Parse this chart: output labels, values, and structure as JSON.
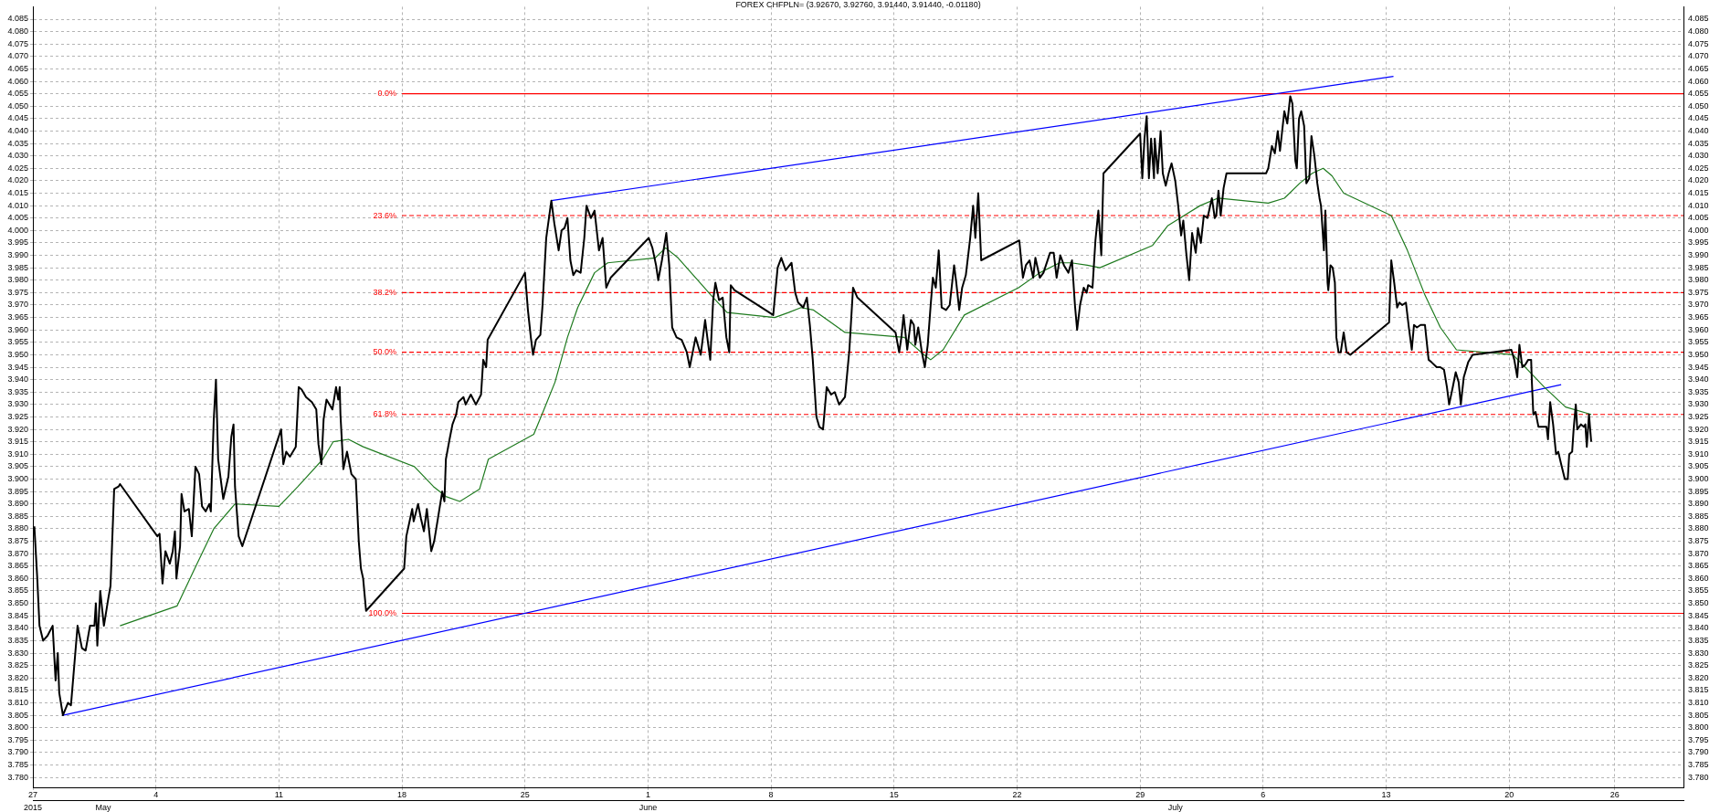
{
  "chart_data": {
    "type": "line",
    "title": "FOREX CHFPLN= (3.92670, 3.92760, 3.91440, 3.91440, -0.01180)",
    "xlim": [
      "2015-04-27",
      "2015-07-29T22:00"
    ],
    "xticks": [
      {
        "value": "2015-04-27",
        "label": "27"
      },
      {
        "value": "2015-05-04",
        "label": "4"
      },
      {
        "value": "2015-05-11",
        "label": "11"
      },
      {
        "value": "2015-05-18",
        "label": "18"
      },
      {
        "value": "2015-05-25",
        "label": "25"
      },
      {
        "value": "2015-06-01",
        "label": "1"
      },
      {
        "value": "2015-06-08",
        "label": "8"
      },
      {
        "value": "2015-06-15",
        "label": "15"
      },
      {
        "value": "2015-06-22",
        "label": "22"
      },
      {
        "value": "2015-06-29",
        "label": "29"
      },
      {
        "value": "2015-07-06",
        "label": "6"
      },
      {
        "value": "2015-07-13",
        "label": "13"
      },
      {
        "value": "2015-07-20",
        "label": "20"
      },
      {
        "value": "2015-07-26",
        "label": "26"
      }
    ],
    "x2lim": [
      "2015-04-27",
      "2015-07-29T22:00"
    ],
    "x2ticks": [
      {
        "value": "2015-04-27",
        "label": "2015"
      },
      {
        "value": "2015-05-01",
        "label": "May"
      },
      {
        "value": "2015-06-01",
        "label": "June"
      },
      {
        "value": "2015-07-01",
        "label": "July"
      }
    ],
    "ylim": [
      3.776,
      4.09
    ],
    "yticks": [
      {
        "value": 3.78,
        "label": "3.780"
      },
      3.785,
      {
        "value": 3.79,
        "label": "3.790"
      },
      3.795,
      {
        "value": 3.8,
        "label": "3.800"
      },
      3.805,
      {
        "value": 3.81,
        "label": "3.810"
      },
      3.815,
      {
        "value": 3.82,
        "label": "3.820"
      },
      3.825,
      {
        "value": 3.83,
        "label": "3.830"
      },
      3.835,
      {
        "value": 3.84,
        "label": "3.840"
      },
      3.845,
      {
        "value": 3.85,
        "label": "3.850"
      },
      3.855,
      {
        "value": 3.86,
        "label": "3.860"
      },
      3.865,
      {
        "value": 3.87,
        "label": "3.870"
      },
      3.875,
      {
        "value": 3.88,
        "label": "3.880"
      },
      3.885,
      {
        "value": 3.89,
        "label": "3.890"
      },
      3.895,
      {
        "value": 3.9,
        "label": "3.900"
      },
      3.905,
      {
        "value": 3.91,
        "label": "3.910"
      },
      3.915,
      {
        "value": 3.92,
        "label": "3.920"
      },
      3.925,
      {
        "value": 3.93,
        "label": "3.930"
      },
      3.935,
      {
        "value": 3.94,
        "label": "3.940"
      },
      3.945,
      {
        "value": 3.95,
        "label": "3.950"
      },
      3.955,
      {
        "value": 3.96,
        "label": "3.960"
      },
      3.965,
      {
        "value": 3.97,
        "label": "3.970"
      },
      3.975,
      {
        "value": 3.98,
        "label": "3.980"
      },
      3.985,
      {
        "value": 3.99,
        "label": "3.990"
      },
      3.995,
      {
        "value": 4,
        "label": "4.000"
      },
      4.005,
      {
        "value": 4.01,
        "label": "4.010"
      },
      4.015,
      {
        "value": 4.02,
        "label": "4.020"
      },
      4.025,
      {
        "value": 4.03,
        "label": "4.030"
      },
      4.035,
      {
        "value": 4.04,
        "label": "4.040"
      },
      4.045,
      {
        "value": 4.05,
        "label": "4.050"
      },
      4.055,
      {
        "value": 4.06,
        "label": "4.060"
      },
      4.065,
      {
        "value": 4.07,
        "label": "4.070"
      },
      4.075,
      {
        "value": 4.08,
        "label": "4.080"
      },
      4.085
    ],
    "y2lim": [
      3.776,
      4.09
    ],
    "y2ticks": [
      {
        "value": 3.78,
        "label": "3.780"
      },
      3.785,
      {
        "value": 3.79,
        "label": "3.790"
      },
      3.795,
      {
        "value": 3.8,
        "label": "3.800"
      },
      3.805,
      {
        "value": 3.81,
        "label": "3.810"
      },
      3.815,
      {
        "value": 3.82,
        "label": "3.820"
      },
      3.825,
      {
        "value": 3.83,
        "label": "3.830"
      },
      3.835,
      {
        "value": 3.84,
        "label": "3.840"
      },
      3.845,
      {
        "value": 3.85,
        "label": "3.850"
      },
      3.855,
      {
        "value": 3.86,
        "label": "3.860"
      },
      3.865,
      {
        "value": 3.87,
        "label": "3.870"
      },
      3.875,
      {
        "value": 3.88,
        "label": "3.880"
      },
      3.885,
      {
        "value": 3.89,
        "label": "3.890"
      },
      3.895,
      {
        "value": 3.9,
        "label": "3.900"
      },
      3.905,
      {
        "value": 3.91,
        "label": "3.910"
      },
      3.915,
      {
        "value": 3.92,
        "label": "3.920"
      },
      3.925,
      {
        "value": 3.93,
        "label": "3.930"
      },
      3.935,
      {
        "value": 3.94,
        "label": "3.940"
      },
      3.945,
      {
        "value": 3.95,
        "label": "3.950"
      },
      3.955,
      {
        "value": 3.96,
        "label": "3.960"
      },
      3.965,
      {
        "value": 3.97,
        "label": "3.970"
      },
      3.975,
      {
        "value": 3.98,
        "label": "3.980"
      },
      3.985,
      {
        "value": 3.99,
        "label": "3.990"
      },
      3.995,
      {
        "value": 4,
        "label": "4.000"
      },
      4.005,
      {
        "value": 4.01,
        "label": "4.010"
      },
      4.015,
      {
        "value": 4.02,
        "label": "4.020"
      },
      4.025,
      {
        "value": 4.03,
        "label": "4.030"
      },
      4.035,
      {
        "value": 4.04,
        "label": "4.040"
      },
      4.045,
      {
        "value": 4.05,
        "label": "4.050"
      },
      4.055,
      {
        "value": 4.06,
        "label": "4.060"
      },
      4.065,
      {
        "value": 4.07,
        "label": "4.070"
      },
      4.075,
      {
        "value": 4.08,
        "label": "4.080"
      },
      4.085
    ],
    "grid": true,
    "series": [
      {
        "color": "#000000",
        "x": [
          "2015-04-27T02:00",
          "2015-04-27T06:00",
          "2015-04-27T09:00",
          "2015-04-27T14:00",
          "2015-04-27T20:00",
          "2015-04-28T03:00",
          "2015-04-28T07:00",
          "2015-04-28T10:00",
          "2015-04-28T12:00",
          "2015-04-28T17:00",
          "2015-04-29T00:00",
          "2015-04-29T04:00",
          "2015-04-29T13:00",
          "2015-04-29T19:00",
          "2015-04-30T00:00",
          "2015-04-30T06:00",
          "2015-04-30T12:00",
          "2015-04-30T14:00",
          "2015-04-30T16:00",
          "2015-04-30T20:00",
          "2015-05-01T01:00",
          "2015-05-01T07:00",
          "2015-05-01T10:00",
          "2015-05-01T15:00",
          "2015-05-01T21:00",
          "2015-05-01T23:00",
          "2015-05-04T02:00",
          "2015-05-04T05:00",
          "2015-05-04T09:00",
          "2015-05-04T13:00",
          "2015-05-04T19:00",
          "2015-05-04T23:00",
          "2015-05-05T02:00",
          "2015-05-05T04:00",
          "2015-05-05T09:00",
          "2015-05-05T11:00",
          "2015-05-05T15:00",
          "2015-05-05T21:00",
          "2015-05-06T01:00",
          "2015-05-06T06:00",
          "2015-05-06T11:00",
          "2015-05-06T15:00",
          "2015-05-06T20:00",
          "2015-05-07T01:00",
          "2015-05-07T03:00",
          "2015-05-07T07:00",
          "2015-05-07T10:00",
          "2015-05-07T13:00",
          "2015-05-07T20:00",
          "2015-05-08T03:00",
          "2015-05-08T07:00",
          "2015-05-08T10:00",
          "2015-05-08T12:00",
          "2015-05-08T17:00",
          "2015-05-08T22:00",
          "2015-05-11T03:00",
          "2015-05-11T06:00",
          "2015-05-11T10:00",
          "2015-05-11T15:00",
          "2015-05-11T23:00",
          "2015-05-12T03:00",
          "2015-05-12T07:00",
          "2015-05-12T13:00",
          "2015-05-12T21:00",
          "2015-05-13T03:00",
          "2015-05-13T06:00",
          "2015-05-13T10:00",
          "2015-05-13T13:00",
          "2015-05-13T17:00",
          "2015-05-14T01:00",
          "2015-05-14T06:00",
          "2015-05-14T09:00",
          "2015-05-14T11:00",
          "2015-05-14T12:00",
          "2015-05-14T16:00",
          "2015-05-14T21:00",
          "2015-05-15T03:00",
          "2015-05-15T09:00",
          "2015-05-15T13:00",
          "2015-05-15T16:00",
          "2015-05-15T19:00",
          "2015-05-15T23:00",
          "2015-05-18T03:00",
          "2015-05-18T06:00",
          "2015-05-18T14:00",
          "2015-05-18T16:00",
          "2015-05-18T22:00",
          "2015-05-19T02:00",
          "2015-05-19T06:00",
          "2015-05-19T10:00",
          "2015-05-19T16:00",
          "2015-05-19T20:00",
          "2015-05-20T01:00",
          "2015-05-20T07:00",
          "2015-05-20T10:00",
          "2015-05-20T12:00",
          "2015-05-20T17:00",
          "2015-05-20T21:00",
          "2015-05-21T02:00",
          "2015-05-21T05:00",
          "2015-05-21T12:00",
          "2015-05-21T15:00",
          "2015-05-21T22:00",
          "2015-05-22T05:00",
          "2015-05-22T12:00",
          "2015-05-22T15:00",
          "2015-05-22T19:00",
          "2015-05-22T21:00",
          "2015-05-25T00:00",
          "2015-05-25T04:00",
          "2015-05-25T08:00",
          "2015-05-25T11:00",
          "2015-05-25T15:00",
          "2015-05-25T21:00",
          "2015-05-26T00:00",
          "2015-05-26T05:00",
          "2015-05-26T12:00",
          "2015-05-26T16:00",
          "2015-05-26T22:00",
          "2015-05-27T02:00",
          "2015-05-27T06:00",
          "2015-05-27T10:00",
          "2015-05-27T14:00",
          "2015-05-27T18:00",
          "2015-05-27T22:00",
          "2015-05-28T04:00",
          "2015-05-28T09:00",
          "2015-05-28T12:00",
          "2015-05-28T18:00",
          "2015-05-28T23:00",
          "2015-05-29T05:00",
          "2015-05-29T10:00",
          "2015-05-29T15:00",
          "2015-05-29T21:00",
          "2015-06-01T01:00",
          "2015-06-01T06:00",
          "2015-06-01T11:00",
          "2015-06-01T14:00",
          "2015-06-01T19:00",
          "2015-06-02T01:00",
          "2015-06-02T05:00",
          "2015-06-02T09:00",
          "2015-06-02T15:00",
          "2015-06-02T22:00",
          "2015-06-03T05:00",
          "2015-06-03T09:00",
          "2015-06-03T17:00",
          "2015-06-04T00:00",
          "2015-06-04T06:00",
          "2015-06-04T09:00",
          "2015-06-04T13:00",
          "2015-06-04T17:00",
          "2015-06-04T20:00",
          "2015-06-05T01:00",
          "2015-06-05T06:00",
          "2015-06-05T11:00",
          "2015-06-05T15:00",
          "2015-06-05T17:00",
          "2015-06-05T22:00",
          "2015-06-08T03:00",
          "2015-06-08T09:00",
          "2015-06-08T14:00",
          "2015-06-08T20:00",
          "2015-06-09T04:00",
          "2015-06-09T09:00",
          "2015-06-09T13:00",
          "2015-06-09T20:00",
          "2015-06-10T01:00",
          "2015-06-10T05:00",
          "2015-06-10T09:00",
          "2015-06-10T14:00",
          "2015-06-10T18:00",
          "2015-06-10T23:00",
          "2015-06-11T04:00",
          "2015-06-11T10:00",
          "2015-06-11T15:00",
          "2015-06-11T21:00",
          "2015-06-12T05:00",
          "2015-06-12T11:00",
          "2015-06-12T16:00",
          "2015-06-12T22:00",
          "2015-06-15T02:00",
          "2015-06-15T07:00",
          "2015-06-15T10:00",
          "2015-06-15T13:00",
          "2015-06-15T18:00",
          "2015-06-15T23:00",
          "2015-06-16T03:00",
          "2015-06-16T05:00",
          "2015-06-16T09:00",
          "2015-06-16T14:00",
          "2015-06-16T18:00",
          "2015-06-16T22:00",
          "2015-06-17T02:00",
          "2015-06-17T05:00",
          "2015-06-17T09:00",
          "2015-06-17T13:00",
          "2015-06-17T17:00",
          "2015-06-17T23:00",
          "2015-06-18T04:00",
          "2015-06-18T10:00",
          "2015-06-18T13:00",
          "2015-06-18T17:00",
          "2015-06-18T21:00",
          "2015-06-19T02:00",
          "2015-06-19T08:00",
          "2015-06-19T12:00",
          "2015-06-19T15:00",
          "2015-06-19T19:00",
          "2015-06-19T23:00",
          "2015-06-22T03:00",
          "2015-06-22T08:00",
          "2015-06-22T12:00",
          "2015-06-22T17:00",
          "2015-06-22T22:00",
          "2015-06-23T01:00",
          "2015-06-23T07:00",
          "2015-06-23T12:00",
          "2015-06-23T21:00",
          "2015-06-24T02:00",
          "2015-06-24T06:00",
          "2015-06-24T11:00",
          "2015-06-24T16:00",
          "2015-06-24T22:00",
          "2015-06-25T03:00",
          "2015-06-25T07:00",
          "2015-06-25T10:00",
          "2015-06-25T14:00",
          "2015-06-25T19:00",
          "2015-06-25T23:00",
          "2015-06-26T01:00",
          "2015-06-26T07:00",
          "2015-06-26T11:00",
          "2015-06-26T15:00",
          "2015-06-26T19:00",
          "2015-06-26T22:00",
          "2015-06-29T00:00",
          "2015-06-29T03:00",
          "2015-06-29T06:00",
          "2015-06-29T09:00",
          "2015-06-29T12:00",
          "2015-06-29T15:00",
          "2015-06-29T19:00",
          "2015-06-29T20:00",
          "2015-06-30T00:00",
          "2015-06-30T04:00",
          "2015-06-30T07:00",
          "2015-06-30T11:00",
          "2015-06-30T15:00",
          "2015-06-30T19:00",
          "2015-07-01T00:00",
          "2015-07-01T04:00",
          "2015-07-01T08:00",
          "2015-07-01T11:00",
          "2015-07-01T15:00",
          "2015-07-01T19:00",
          "2015-07-01T23:00",
          "2015-07-02T04:00",
          "2015-07-02T07:00",
          "2015-07-02T11:00",
          "2015-07-02T15:00",
          "2015-07-02T20:00",
          "2015-07-03T02:00",
          "2015-07-03T06:00",
          "2015-07-03T08:00",
          "2015-07-03T11:00",
          "2015-07-03T14:00",
          "2015-07-03T18:00",
          "2015-07-03T22:00",
          "2015-07-06T04:00",
          "2015-07-06T07:00",
          "2015-07-06T12:00",
          "2015-07-06T16:00",
          "2015-07-06T20:00",
          "2015-07-06T23:00",
          "2015-07-07T05:00",
          "2015-07-07T09:00",
          "2015-07-07T13:00",
          "2015-07-07T16:00",
          "2015-07-07T20:00",
          "2015-07-07T22:00",
          "2015-07-08T01:00",
          "2015-07-08T04:00",
          "2015-07-08T08:00",
          "2015-07-08T11:00",
          "2015-07-08T15:00",
          "2015-07-08T18:00",
          "2015-07-08T22:00",
          "2015-07-09T02:00",
          "2015-07-09T05:00",
          "2015-07-09T07:00",
          "2015-07-09T11:00",
          "2015-07-09T13:00",
          "2015-07-09T16:00",
          "2015-07-09T17:00",
          "2015-07-09T20:00",
          "2015-07-09T23:00",
          "2015-07-10T02:00",
          "2015-07-10T04:00",
          "2015-07-10T07:00",
          "2015-07-10T10:00",
          "2015-07-10T14:00",
          "2015-07-10T18:00",
          "2015-07-10T23:00",
          "2015-07-13T04:00",
          "2015-07-13T07:00",
          "2015-07-13T11:00",
          "2015-07-13T15:00",
          "2015-07-13T18:00",
          "2015-07-13T22:00",
          "2015-07-14T03:00",
          "2015-07-14T07:00",
          "2015-07-14T11:00",
          "2015-07-14T14:00",
          "2015-07-14T18:00",
          "2015-07-14T23:00",
          "2015-07-15T05:00",
          "2015-07-15T10:00",
          "2015-07-15T14:00",
          "2015-07-15T21:00",
          "2015-07-16T02:00",
          "2015-07-16T07:00",
          "2015-07-16T11:00",
          "2015-07-16T14:00",
          "2015-07-16T19:00",
          "2015-07-16T23:00",
          "2015-07-17T03:00",
          "2015-07-17T06:00",
          "2015-07-17T10:00",
          "2015-07-17T16:00",
          "2015-07-17T22:00",
          "2015-07-20T03:00",
          "2015-07-20T07:00",
          "2015-07-20T11:00",
          "2015-07-20T14:00",
          "2015-07-20T18:00",
          "2015-07-20T22:00",
          "2015-07-21T02:00",
          "2015-07-21T06:00",
          "2015-07-21T07:00",
          "2015-07-21T09:00",
          "2015-07-21T12:00",
          "2015-07-21T16:00",
          "2015-07-21T21:00",
          "2015-07-22T03:00",
          "2015-07-22T05:00",
          "2015-07-22T08:00",
          "2015-07-22T12:00",
          "2015-07-22T16:00",
          "2015-07-22T19:00",
          "2015-07-22T23:00",
          "2015-07-23T04:00",
          "2015-07-23T08:00",
          "2015-07-23T10:00",
          "2015-07-23T14:00",
          "2015-07-23T16:00",
          "2015-07-23T19:00",
          "2015-07-23T21:00",
          "2015-07-24T02:00",
          "2015-07-24T06:00",
          "2015-07-24T08:00",
          "2015-07-24T10:00",
          "2015-07-24T13:00",
          "2015-07-24T16:00"
        ],
        "values": [
          3.881,
          3.86,
          3.841,
          3.835,
          3.837,
          3.841,
          3.819,
          3.83,
          3.814,
          3.805,
          3.81,
          3.809,
          3.841,
          3.832,
          3.831,
          3.841,
          3.841,
          3.85,
          3.833,
          3.855,
          3.841,
          3.852,
          3.857,
          3.896,
          3.897,
          3.898,
          3.877,
          3.878,
          3.858,
          3.871,
          3.866,
          3.871,
          3.879,
          3.86,
          3.873,
          3.894,
          3.887,
          3.888,
          3.877,
          3.905,
          3.902,
          3.889,
          3.887,
          3.89,
          3.887,
          3.924,
          3.94,
          3.908,
          3.892,
          3.901,
          3.917,
          3.922,
          3.897,
          3.877,
          3.873,
          3.92,
          3.906,
          3.911,
          3.909,
          3.913,
          3.937,
          3.936,
          3.933,
          3.931,
          3.928,
          3.914,
          3.906,
          3.924,
          3.932,
          3.928,
          3.937,
          3.932,
          3.937,
          3.926,
          3.904,
          3.911,
          3.902,
          3.9,
          3.875,
          3.864,
          3.86,
          3.847,
          3.864,
          3.877,
          3.888,
          3.883,
          3.89,
          3.884,
          3.879,
          3.888,
          3.871,
          3.875,
          3.884,
          3.895,
          3.891,
          3.908,
          3.916,
          3.922,
          3.926,
          3.931,
          3.933,
          3.93,
          3.934,
          3.93,
          3.934,
          3.948,
          3.945,
          3.956,
          3.983,
          3.968,
          3.957,
          3.95,
          3.956,
          3.958,
          3.97,
          3.997,
          4.012,
          4.003,
          3.992,
          4,
          4.001,
          4.005,
          3.988,
          3.982,
          3.984,
          3.983,
          3.997,
          4.01,
          4.005,
          4.008,
          3.992,
          3.997,
          3.977,
          3.981,
          3.997,
          3.993,
          3.986,
          3.98,
          3.988,
          3.999,
          3.986,
          3.961,
          3.957,
          3.956,
          3.951,
          3.945,
          3.957,
          3.95,
          3.964,
          3.957,
          3.948,
          3.972,
          3.979,
          3.972,
          3.973,
          3.957,
          3.951,
          3.978,
          3.976,
          3.966,
          3.985,
          3.989,
          3.984,
          3.987,
          3.975,
          3.971,
          3.969,
          3.973,
          3.962,
          3.948,
          3.925,
          3.921,
          3.92,
          3.937,
          3.934,
          3.935,
          3.93,
          3.933,
          3.952,
          3.977,
          3.973,
          3.959,
          3.951,
          3.957,
          3.966,
          3.952,
          3.964,
          3.962,
          3.954,
          3.961,
          3.951,
          3.945,
          3.954,
          3.97,
          3.981,
          3.977,
          3.992,
          3.969,
          3.968,
          3.97,
          3.986,
          3.979,
          3.968,
          3.977,
          3.982,
          3.997,
          4.01,
          3.997,
          4.015,
          3.988,
          3.996,
          3.981,
          3.986,
          3.988,
          3.981,
          3.989,
          3.981,
          3.983,
          3.991,
          3.991,
          3.981,
          3.99,
          3.986,
          3.983,
          3.988,
          3.97,
          3.96,
          3.97,
          3.977,
          3.975,
          3.978,
          3.977,
          3.996,
          4.008,
          3.99,
          4.023,
          4.039,
          4.021,
          4.037,
          4.046,
          4.021,
          4.037,
          4.021,
          4.037,
          4.023,
          4.04,
          4.023,
          4.018,
          4.023,
          4.027,
          4.02,
          4.01,
          3.998,
          4.004,
          3.991,
          3.98,
          3.999,
          3.991,
          4.001,
          3.995,
          4.006,
          4.005,
          4.013,
          4.005,
          4.006,
          4.016,
          4.006,
          4.017,
          4.023,
          4.023,
          4.025,
          4.034,
          4.031,
          4.04,
          4.032,
          4.048,
          4.043,
          4.054,
          4.051,
          4.028,
          4.025,
          4.045,
          4.048,
          4.042,
          4.019,
          4.021,
          4.038,
          4.03,
          4.019,
          4.013,
          4.01,
          3.992,
          4.008,
          3.979,
          3.976,
          3.986,
          3.985,
          3.979,
          3.957,
          3.951,
          3.951,
          3.959,
          3.951,
          3.95,
          3.963,
          3.988,
          3.979,
          3.969,
          3.971,
          3.97,
          3.971,
          3.961,
          3.952,
          3.962,
          3.961,
          3.962,
          3.962,
          3.948,
          3.947,
          3.945,
          3.945,
          3.944,
          3.937,
          3.93,
          3.937,
          3.943,
          3.939,
          3.93,
          3.941,
          3.947,
          3.95,
          3.952,
          3.948,
          3.941,
          3.954,
          3.945,
          3.946,
          3.948,
          3.948,
          3.939,
          3.926,
          3.927,
          3.921,
          3.921,
          3.921,
          3.916,
          3.931,
          3.922,
          3.91,
          3.911,
          3.906,
          3.9,
          3.9,
          3.91,
          3.911,
          3.92,
          3.93,
          3.92,
          3.922,
          3.921,
          3.922,
          3.913,
          3.926,
          3.915
        ]
      },
      {
        "color": "#1e7a1e",
        "x": [
          "2015-05-01T23:00",
          "2015-05-05T05:00",
          "2015-05-06T05:00",
          "2015-05-07T07:00",
          "2015-05-08T12:00",
          "2015-05-11T00:00",
          "2015-05-12T02:00",
          "2015-05-13T12:00",
          "2015-05-14T02:00",
          "2015-05-14T23:00",
          "2015-05-15T19:00",
          "2015-05-18T17:00",
          "2015-05-19T19:00",
          "2015-05-20T12:00",
          "2015-05-21T07:00",
          "2015-05-22T10:00",
          "2015-05-22T22:00",
          "2015-05-25T12:00",
          "2015-05-26T02:00",
          "2015-05-26T17:00",
          "2015-05-27T10:00",
          "2015-05-28T00:00",
          "2015-05-28T23:00",
          "2015-05-29T17:00",
          "2015-06-01T10:00",
          "2015-06-02T00:00",
          "2015-06-02T17:00",
          "2015-06-03T17:00",
          "2015-06-04T14:00",
          "2015-06-05T12:00",
          "2015-06-08T05:00",
          "2015-06-09T00:00",
          "2015-06-09T17:00",
          "2015-06-10T10:00",
          "2015-06-11T05:00",
          "2015-06-12T05:00",
          "2015-06-15T14:00",
          "2015-06-16T17:00",
          "2015-06-17T02:00",
          "2015-06-17T19:00",
          "2015-06-19T00:00",
          "2015-06-22T02:00",
          "2015-06-23T07:00",
          "2015-06-24T10:00",
          "2015-06-25T02:00",
          "2015-06-26T00:00",
          "2015-06-26T17:00",
          "2015-06-29T17:00",
          "2015-06-30T14:00",
          "2015-07-01T12:00",
          "2015-07-02T10:00",
          "2015-07-03T10:00",
          "2015-07-06T07:00",
          "2015-07-07T05:00",
          "2015-07-08T02:00",
          "2015-07-08T19:00",
          "2015-07-09T10:00",
          "2015-07-09T22:00",
          "2015-07-10T14:00",
          "2015-07-13T07:00",
          "2015-07-14T05:00",
          "2015-07-15T05:00",
          "2015-07-16T02:00",
          "2015-07-17T00:00",
          "2015-07-20T05:00",
          "2015-07-20T22:00",
          "2015-07-22T00:00",
          "2015-07-23T05:00",
          "2015-07-24T16:00"
        ],
        "values": [
          3.841,
          3.849,
          3.864,
          3.88,
          3.89,
          3.889,
          3.897,
          3.908,
          3.915,
          3.916,
          3.913,
          3.905,
          3.897,
          3.893,
          3.891,
          3.896,
          3.908,
          3.918,
          3.928,
          3.939,
          3.957,
          3.969,
          3.983,
          3.987,
          3.989,
          3.993,
          3.989,
          3.981,
          3.974,
          3.967,
          3.965,
          3.967,
          3.969,
          3.968,
          3.964,
          3.959,
          3.957,
          3.95,
          3.948,
          3.952,
          3.966,
          3.977,
          3.983,
          3.987,
          3.987,
          3.986,
          3.985,
          3.994,
          4.002,
          4.006,
          4.01,
          4.013,
          4.011,
          4.013,
          4.019,
          4.023,
          4.025,
          4.022,
          4.015,
          4.006,
          3.992,
          3.974,
          3.961,
          3.952,
          3.95,
          3.945,
          3.937,
          3.929,
          3.926
        ]
      },
      {
        "color": "#0000ff",
        "x": [
          "2015-04-28T17:00",
          "2015-07-22T23:00"
        ],
        "values": [
          3.805,
          3.938
        ]
      },
      {
        "color": "#0000ff",
        "x": [
          "2015-05-26T12:00",
          "2015-07-13T10:00"
        ],
        "values": [
          4.012,
          4.062
        ]
      },
      {
        "name": "0.0%",
        "color": "#ff0000",
        "line_style": "solid",
        "x": [
          "2015-05-18T00:00",
          "2015-07-29T22:00"
        ],
        "values": [
          4.055,
          4.055
        ]
      },
      {
        "name": "23.6%",
        "color": "#ff0000",
        "line_style": "dashed",
        "x": [
          "2015-05-18T00:00",
          "2015-07-29T22:00"
        ],
        "values": [
          4.006,
          4.006
        ]
      },
      {
        "name": "38.2%",
        "color": "#ff0000",
        "line_style": "dashed",
        "x": [
          "2015-05-18T00:00",
          "2015-07-29T22:00"
        ],
        "values": [
          3.975,
          3.975
        ]
      },
      {
        "name": "50.0%",
        "color": "#ff0000",
        "line_style": "dashed",
        "x": [
          "2015-05-18T00:00",
          "2015-07-29T22:00"
        ],
        "values": [
          3.951,
          3.951
        ]
      },
      {
        "name": "61.8%",
        "color": "#ff0000",
        "line_style": "dashed",
        "x": [
          "2015-05-18T00:00",
          "2015-07-29T22:00"
        ],
        "values": [
          3.926,
          3.926
        ]
      },
      {
        "name": "100.0%",
        "color": "#ff0000",
        "line_style": "solid",
        "x": [
          "2015-05-18T00:00",
          "2015-07-29T22:00"
        ],
        "values": [
          3.846,
          3.846
        ]
      }
    ]
  }
}
